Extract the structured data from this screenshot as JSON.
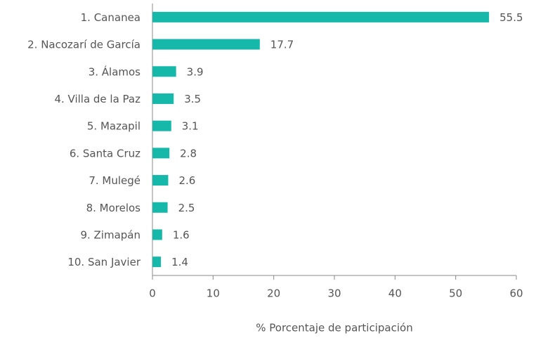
{
  "chart_data": {
    "type": "barh",
    "xlabel": "% Porcentaje de participación",
    "categories": [
      "1. Cananea",
      "2. Nacozarí de García",
      "3. Álamos",
      "4. Villa de la Paz",
      "5. Mazapil",
      "6. Santa Cruz",
      "7. Mulegé",
      "8. Morelos",
      "9. Zimapán",
      "10. San Javier"
    ],
    "values": [
      55.5,
      17.7,
      3.9,
      3.5,
      3.1,
      2.8,
      2.6,
      2.5,
      1.6,
      1.4
    ],
    "color": "#16b9a9",
    "xlim": [
      0,
      60
    ],
    "xticks": [
      0,
      10,
      20,
      30,
      40,
      50,
      60
    ],
    "grid": false
  }
}
